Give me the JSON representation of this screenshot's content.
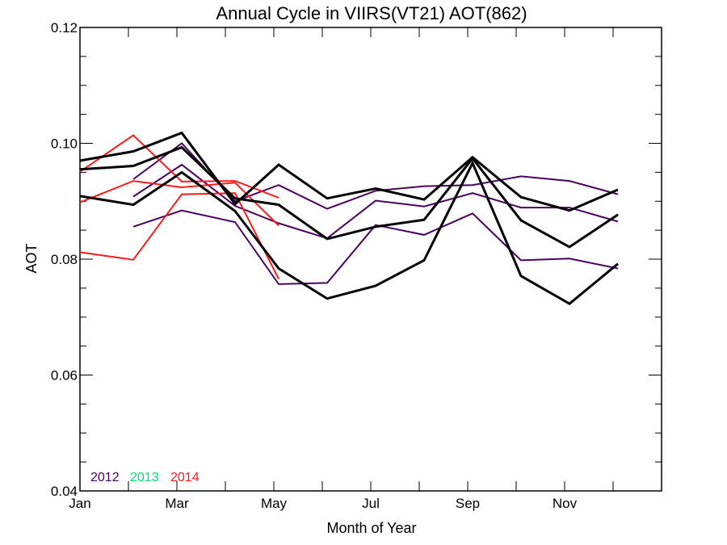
{
  "chart_data": {
    "type": "line",
    "title": "Annual Cycle in VIIRS(VT21) AOT(862)",
    "xlabel": "Month of Year",
    "ylabel": "AOT",
    "xlim": [
      1,
      13
    ],
    "ylim": [
      0.04,
      0.12
    ],
    "x_ticks": [
      {
        "value": 1,
        "label": "Jan"
      },
      {
        "value": 3,
        "label": "Mar"
      },
      {
        "value": 5,
        "label": "May"
      },
      {
        "value": 7,
        "label": "Jul"
      },
      {
        "value": 9,
        "label": "Sep"
      },
      {
        "value": 11,
        "label": "Nov"
      }
    ],
    "y_ticks": [
      {
        "value": 0.04,
        "label": "0.04"
      },
      {
        "value": 0.06,
        "label": "0.06"
      },
      {
        "value": 0.08,
        "label": "0.08"
      },
      {
        "value": 0.1,
        "label": "0.10"
      },
      {
        "value": 0.12,
        "label": "0.12"
      }
    ],
    "legend": [
      {
        "label": "2012",
        "color": "#4b0060"
      },
      {
        "label": "2013",
        "color": "#00e070"
      },
      {
        "label": "2014",
        "color": "#ff1a1a"
      }
    ],
    "legend_position": "bottom-left",
    "series": [
      {
        "year": "2012",
        "color": "#4b0060",
        "width": 2,
        "x": [
          2.1,
          3.1,
          4.2,
          5.1,
          6.1,
          7.1,
          8.1,
          9.1,
          10.1,
          11.1,
          12.1
        ],
        "y": [
          0.0938,
          0.1,
          0.09,
          0.0928,
          0.0887,
          0.0918,
          0.0926,
          0.0928,
          0.0943,
          0.0935,
          0.0912
        ]
      },
      {
        "year": "2012",
        "color": "#4b0060",
        "width": 2,
        "x": [
          2.1,
          3.1,
          4.2,
          5.1,
          6.1,
          7.1,
          8.1,
          9.1,
          10.1,
          11.1,
          12.1
        ],
        "y": [
          0.0908,
          0.0963,
          0.0892,
          0.0862,
          0.0836,
          0.0901,
          0.0891,
          0.0914,
          0.0889,
          0.0889,
          0.0865
        ]
      },
      {
        "year": "2012",
        "color": "#4b0060",
        "width": 2,
        "x": [
          2.1,
          3.1,
          4.2,
          5.1,
          6.1,
          7.1,
          8.1,
          9.1,
          10.1,
          11.1,
          12.1
        ],
        "y": [
          0.0856,
          0.0884,
          0.0864,
          0.0757,
          0.0759,
          0.0859,
          0.0842,
          0.0879,
          0.0798,
          0.0801,
          0.0784
        ]
      },
      {
        "year": "2014",
        "color": "#ff1a1a",
        "width": 2,
        "x": [
          1,
          2.1,
          3.1,
          4.2,
          5.1
        ],
        "y": [
          0.0951,
          0.1014,
          0.0934,
          0.0935,
          0.0906
        ]
      },
      {
        "year": "2014",
        "color": "#ff1a1a",
        "width": 2,
        "x": [
          1,
          2.1,
          3.1,
          4.2,
          5.1
        ],
        "y": [
          0.0898,
          0.0935,
          0.0924,
          0.0932,
          0.0858
        ]
      },
      {
        "year": "2014",
        "color": "#ff1a1a",
        "width": 2,
        "x": [
          1,
          2.1,
          3.1,
          4.2,
          5.1
        ],
        "y": [
          0.0812,
          0.0799,
          0.0912,
          0.0914,
          0.0766
        ]
      },
      {
        "year": "",
        "color": "#000000",
        "width": 3,
        "x": [
          1,
          2.1,
          3.1,
          4.2,
          5.1,
          6.1,
          7.1,
          8.1,
          9.1,
          10.1,
          11.1,
          12.1
        ],
        "y": [
          0.097,
          0.0986,
          0.1018,
          0.0895,
          0.0963,
          0.0905,
          0.0922,
          0.0903,
          0.0976,
          0.0907,
          0.0884,
          0.092
        ]
      },
      {
        "year": "",
        "color": "#000000",
        "width": 3,
        "x": [
          1,
          2.1,
          3.1,
          4.2,
          5.1,
          6.1,
          7.1,
          8.1,
          9.1,
          10.1,
          11.1,
          12.1
        ],
        "y": [
          0.0955,
          0.0961,
          0.0993,
          0.0905,
          0.0894,
          0.0835,
          0.0856,
          0.0868,
          0.0974,
          0.0867,
          0.0821,
          0.0877
        ]
      },
      {
        "year": "",
        "color": "#000000",
        "width": 3,
        "x": [
          1,
          2.1,
          3.1,
          4.2,
          5.1,
          6.1,
          7.1,
          8.1,
          9.1,
          10.1,
          11.1,
          12.1
        ],
        "y": [
          0.0909,
          0.0894,
          0.095,
          0.0883,
          0.0784,
          0.0732,
          0.0754,
          0.0798,
          0.0966,
          0.0771,
          0.0723,
          0.0792
        ]
      }
    ]
  }
}
